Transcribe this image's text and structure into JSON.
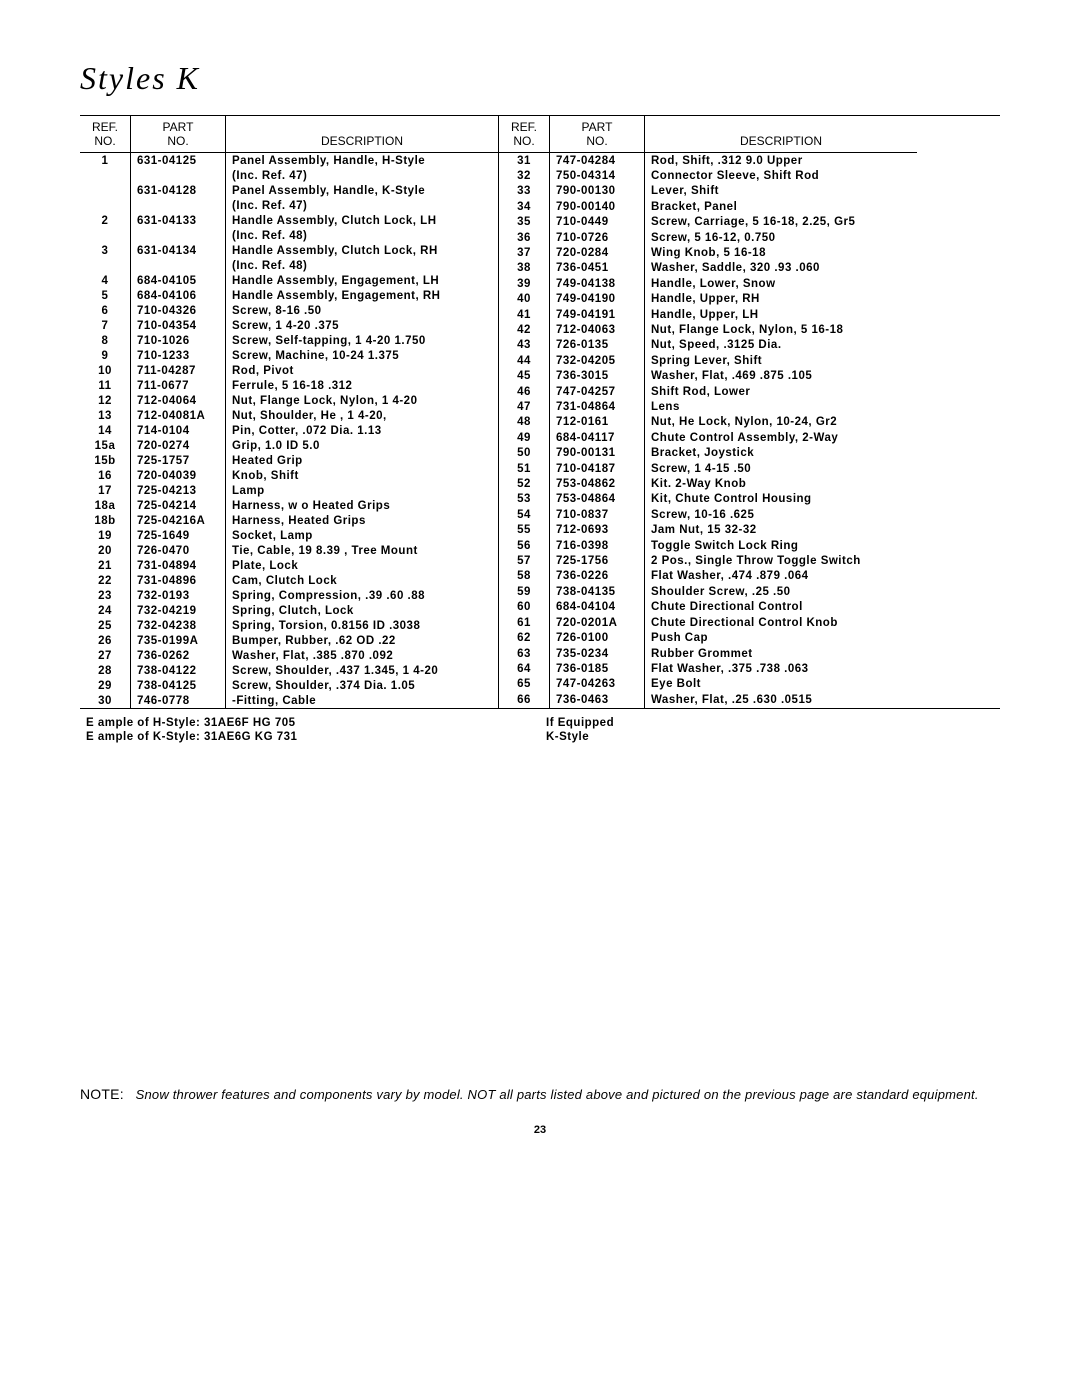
{
  "title": "Styles    K",
  "headers": {
    "ref1": "REF.",
    "ref2": "NO.",
    "part1": "PART",
    "part2": "NO.",
    "desc": "DESCRIPTION"
  },
  "left_rows": [
    {
      "ref": "1",
      "part": "631-04125",
      "desc": "Panel Assembly, Handle, H-Style"
    },
    {
      "ref": "",
      "part": "",
      "desc": "(Inc. Ref. 47)"
    },
    {
      "ref": "",
      "part": "631-04128",
      "desc": "Panel Assembly, Handle, K-Style"
    },
    {
      "ref": "",
      "part": "",
      "desc": "(Inc. Ref. 47)"
    },
    {
      "ref": "2",
      "part": "631-04133",
      "desc": "Handle Assembly, Clutch Lock, LH"
    },
    {
      "ref": "",
      "part": "",
      "desc": "(Inc. Ref. 48)"
    },
    {
      "ref": "3",
      "part": "631-04134",
      "desc": "Handle Assembly, Clutch Lock, RH"
    },
    {
      "ref": "",
      "part": "",
      "desc": "(Inc. Ref. 48)"
    },
    {
      "ref": "4",
      "part": "684-04105",
      "desc": "Handle Assembly, Engagement, LH"
    },
    {
      "ref": "5",
      "part": "684-04106",
      "desc": "Handle Assembly, Engagement, RH"
    },
    {
      "ref": "6",
      "part": "710-04326",
      "desc": "Screw,  8-16  .50"
    },
    {
      "ref": "7",
      "part": "710-04354",
      "desc": "Screw, 1 4-20  .375"
    },
    {
      "ref": "8",
      "part": "710-1026",
      "desc": "Screw, Self-tapping, 1 4-20  1.750"
    },
    {
      "ref": "9",
      "part": "710-1233",
      "desc": "Screw, Machine,  10-24  1.375"
    },
    {
      "ref": "10",
      "part": "711-04287",
      "desc": "Rod, Pivot"
    },
    {
      "ref": "11",
      "part": "711-0677",
      "desc": "Ferrule, 5 16-18  .312"
    },
    {
      "ref": "12",
      "part": "712-04064",
      "desc": "Nut, Flange Lock, Nylon, 1 4-20"
    },
    {
      "ref": "13",
      "part": "712-04081A",
      "desc": "Nut, Shoulder, He , 1 4-20,"
    },
    {
      "ref": "14",
      "part": "714-0104",
      "desc": "Pin, Cotter, .072 Dia.  1.13"
    },
    {
      "ref": "15a",
      "part": "720-0274",
      "desc": "Grip, 1.0 ID   5.0"
    },
    {
      "ref": "15b",
      "part": "725-1757",
      "desc": "Heated Grip"
    },
    {
      "ref": "16",
      "part": "720-04039",
      "desc": "Knob, Shift"
    },
    {
      "ref": "17",
      "part": "725-04213",
      "desc": "Lamp"
    },
    {
      "ref": "18a",
      "part": "725-04214",
      "desc": "Harness, w o Heated Grips"
    },
    {
      "ref": "18b",
      "part": "725-04216A",
      "desc": "Harness, Heated Grips"
    },
    {
      "ref": "19",
      "part": "725-1649",
      "desc": "Socket, Lamp"
    },
    {
      "ref": "20",
      "part": "726-0470",
      "desc": "Tie, Cable, 19  8.39 , Tree Mount"
    },
    {
      "ref": "21",
      "part": "731-04894",
      "desc": "Plate, Lock"
    },
    {
      "ref": "22",
      "part": "731-04896",
      "desc": "Cam, Clutch Lock"
    },
    {
      "ref": "23",
      "part": "732-0193",
      "desc": "Spring, Compression, .39  .60  .88"
    },
    {
      "ref": "24",
      "part": "732-04219",
      "desc": "Spring, Clutch, Lock"
    },
    {
      "ref": "25",
      "part": "732-04238",
      "desc": "Spring, Torsion, 0.8156 ID  .3038"
    },
    {
      "ref": "26",
      "part": "735-0199A",
      "desc": "Bumper, Rubber, .62 OD  .22"
    },
    {
      "ref": "27",
      "part": "736-0262",
      "desc": "Washer, Flat, .385  .870  .092"
    },
    {
      "ref": "28",
      "part": "738-04122",
      "desc": "Screw, Shoulder, .437  1.345, 1 4-20"
    },
    {
      "ref": "29",
      "part": "738-04125",
      "desc": "Screw, Shoulder, .374 Dia.  1.05"
    },
    {
      "ref": "30",
      "part": "746-0778",
      "desc": "-Fitting, Cable"
    }
  ],
  "right_rows": [
    {
      "ref": "31",
      "part": "747-04284",
      "desc": "Rod, Shift, .312  9.0 Upper"
    },
    {
      "ref": "32",
      "part": "750-04314",
      "desc": "Connector Sleeve, Shift Rod"
    },
    {
      "ref": "33",
      "part": "790-00130",
      "desc": "Lever, Shift"
    },
    {
      "ref": "34",
      "part": "790-00140",
      "desc": "Bracket, Panel"
    },
    {
      "ref": "35",
      "part": "710-0449",
      "desc": "Screw, Carriage, 5 16-18, 2.25, Gr5"
    },
    {
      "ref": "36",
      "part": "710-0726",
      "desc": "Screw, 5 16-12, 0.750"
    },
    {
      "ref": "37",
      "part": "720-0284",
      "desc": "Wing Knob, 5 16-18"
    },
    {
      "ref": "38",
      "part": "736-0451",
      "desc": "Washer, Saddle, 320  .93  .060"
    },
    {
      "ref": "39",
      "part": "749-04138",
      "desc": "Handle, Lower, Snow"
    },
    {
      "ref": "40",
      "part": "749-04190",
      "desc": "Handle, Upper, RH"
    },
    {
      "ref": "41",
      "part": "749-04191",
      "desc": "Handle, Upper, LH"
    },
    {
      "ref": "42",
      "part": "712-04063",
      "desc": "Nut, Flange Lock, Nylon, 5 16-18"
    },
    {
      "ref": "43",
      "part": "726-0135",
      "desc": "Nut, Speed, .3125 Dia."
    },
    {
      "ref": "44",
      "part": "732-04205",
      "desc": "Spring Lever, Shift"
    },
    {
      "ref": "45",
      "part": "736-3015",
      "desc": "Washer, Flat, .469  .875  .105"
    },
    {
      "ref": "46",
      "part": "747-04257",
      "desc": "Shift Rod, Lower"
    },
    {
      "ref": "47",
      "part": "731-04864",
      "desc": "Lens"
    },
    {
      "ref": "48",
      "part": "712-0161",
      "desc": "Nut, He  Lock, Nylon,  10-24, Gr2"
    },
    {
      "ref": "49",
      "part": "684-04117",
      "desc": "Chute Control Assembly, 2-Way"
    },
    {
      "ref": "50",
      "part": "790-00131",
      "desc": "Bracket, Joystick"
    },
    {
      "ref": "51",
      "part": "710-04187",
      "desc": "Screw, 1 4-15  .50"
    },
    {
      "ref": "52",
      "part": "753-04862",
      "desc": "Kit. 2-Way Knob"
    },
    {
      "ref": "53",
      "part": "753-04864",
      "desc": "Kit, Chute Control Housing"
    },
    {
      "ref": "54",
      "part": "710-0837",
      "desc": "Screw,  10-16  .625"
    },
    {
      "ref": "55",
      "part": "712-0693",
      "desc": "Jam Nut, 15 32-32"
    },
    {
      "ref": "56",
      "part": "716-0398",
      "desc": "Toggle Switch Lock Ring"
    },
    {
      "ref": "57",
      "part": "725-1756",
      "desc": "2 Pos., Single Throw Toggle Switch"
    },
    {
      "ref": "58",
      "part": "736-0226",
      "desc": "Flat Washer, .474  .879  .064"
    },
    {
      "ref": "59",
      "part": "738-04135",
      "desc": "Shoulder Screw, .25  .50"
    },
    {
      "ref": "60",
      "part": "684-04104",
      "desc": "Chute Directional Control"
    },
    {
      "ref": "61",
      "part": "720-0201A",
      "desc": "Chute Directional Control Knob"
    },
    {
      "ref": "62",
      "part": "726-0100",
      "desc": "Push Cap"
    },
    {
      "ref": "63",
      "part": "735-0234",
      "desc": "Rubber Grommet"
    },
    {
      "ref": "64",
      "part": "736-0185",
      "desc": "Flat Washer, .375  .738  .063"
    },
    {
      "ref": "65",
      "part": "747-04263",
      "desc": "Eye Bolt"
    },
    {
      "ref": "66",
      "part": "736-0463",
      "desc": "Washer, Flat, .25  .630  .0515"
    }
  ],
  "footnotes_left": [
    "E ample of H-Style: 31AE6F HG 705",
    "E ample of K-Style: 31AE6G KG 731"
  ],
  "footnotes_right": [
    "If Equipped",
    "K-Style"
  ],
  "note_label": "NOTE:",
  "note_text": "Snow thrower features and components vary by model. NOT all parts listed above and pictured on the previous page are standard equipment.",
  "page_number": "23"
}
